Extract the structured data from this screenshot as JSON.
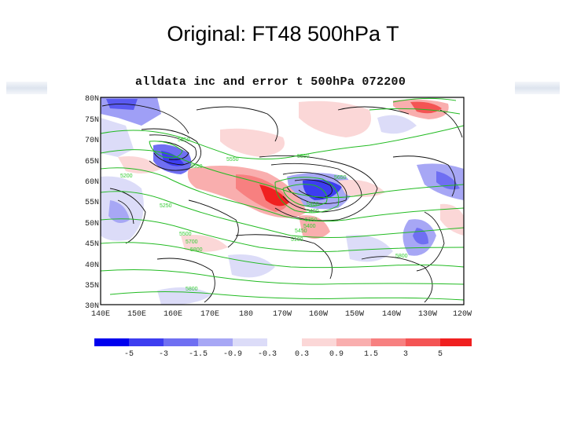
{
  "slide_title": "Original: FT48 500hPa T",
  "plot_title": "alldata inc and error t 500hPa 072200",
  "map": {
    "lat_ticks": [
      "80N",
      "75N",
      "70N",
      "65N",
      "60N",
      "55N",
      "50N",
      "45N",
      "40N",
      "35N",
      "30N"
    ],
    "lon_ticks": [
      "140E",
      "150E",
      "160E",
      "170E",
      "180",
      "170W",
      "160W",
      "150W",
      "140W",
      "130W",
      "120W"
    ],
    "contour_labels": [
      "5550",
      "5550",
      "5550",
      "5200",
      "5550",
      "5250",
      "5400",
      "5400",
      "5350",
      "5400",
      "5450",
      "5500",
      "5700",
      "5100",
      "5800",
      "5650",
      "5800",
      "5800"
    ],
    "increment_colors": {
      "negative": "#3333ee",
      "positive": "#ff3333"
    },
    "error_contour_color": "#111111",
    "height_contour_color": "#22bb22"
  },
  "colorbar": {
    "labels": [
      "-5",
      "-3",
      "-1.5",
      "-0.9",
      "-0.3",
      "0.3",
      "0.9",
      "1.5",
      "3",
      "5"
    ],
    "colors": [
      "#0000ee",
      "#3d3df0",
      "#6f6ff2",
      "#a7a7f5",
      "#dcdcf8",
      "#ffffff",
      "#fbd7d7",
      "#f9aeae",
      "#f78080",
      "#f45454",
      "#f02020"
    ]
  }
}
